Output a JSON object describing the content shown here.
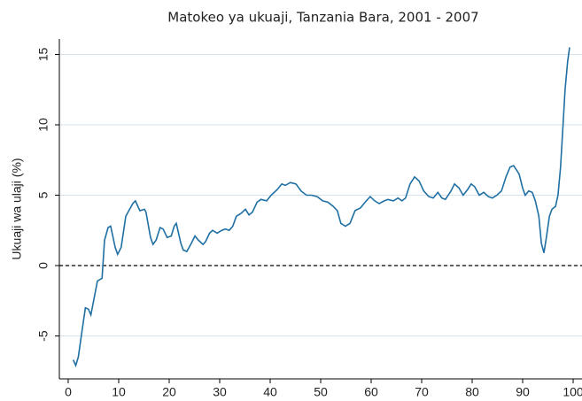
{
  "chart_data": {
    "type": "line",
    "title": "Matokeo ya ukuaji, Tanzania Bara, 2001 - 2007",
    "ylabel": "Ukuaji wa ulaji (%)",
    "color": "#1f6fa3",
    "x": [
      1,
      1.5,
      2,
      2.8,
      3.4,
      4,
      4.5,
      5.8,
      6.7,
      7.2,
      7.9,
      8.4,
      9.3,
      9.8,
      10.5,
      11.4,
      12.8,
      13.3,
      14.2,
      15.1,
      15.4,
      16.3,
      16.8,
      17.4,
      18.2,
      18.8,
      19.6,
      20.4,
      21,
      21.4,
      22.3,
      22.8,
      23.5,
      24.4,
      25.1,
      25.8,
      26.7,
      27.2,
      28,
      28.6,
      29.5,
      30.4,
      31.1,
      31.9,
      32.6,
      33.3,
      34.2,
      35.1,
      35.8,
      36.5,
      37.4,
      38.2,
      39.3,
      40.2,
      41.4,
      42.3,
      43,
      44,
      45.1,
      46.1,
      47.2,
      48.2,
      49.3,
      50.4,
      51.4,
      52.5,
      53.3,
      54,
      54.9,
      55.8,
      56.8,
      57.9,
      58.8,
      59.8,
      60.7,
      61.6,
      62.6,
      63.3,
      64.4,
      65.3,
      66.1,
      66.8,
      67.7,
      68.6,
      69.5,
      70.4,
      71.4,
      72.3,
      73.2,
      74,
      74.7,
      75.8,
      76.5,
      77.4,
      78.2,
      79.1,
      79.8,
      80.5,
      81.4,
      82.3,
      83.2,
      84,
      84.9,
      85.8,
      86.7,
      87.5,
      88.2,
      89.3,
      90,
      90.5,
      91.2,
      91.9,
      92.5,
      93.2,
      93.7,
      94.2,
      94.7,
      95.3,
      95.8,
      96.5,
      97,
      97.5,
      98,
      98.4,
      98.9,
      99.3
    ],
    "values": [
      -6.7,
      -7.1,
      -6.5,
      -4.5,
      -3.0,
      -3.1,
      -3.5,
      -1.1,
      -0.9,
      1.8,
      2.7,
      2.8,
      1.3,
      0.8,
      1.3,
      3.5,
      4.4,
      4.6,
      3.9,
      4.0,
      3.8,
      2.0,
      1.5,
      1.8,
      2.7,
      2.6,
      2.0,
      2.1,
      2.8,
      3.0,
      1.6,
      1.1,
      1.0,
      1.6,
      2.1,
      1.8,
      1.5,
      1.7,
      2.3,
      2.5,
      2.3,
      2.5,
      2.6,
      2.5,
      2.8,
      3.5,
      3.7,
      4.0,
      3.6,
      3.8,
      4.5,
      4.7,
      4.6,
      5.0,
      5.4,
      5.8,
      5.7,
      5.9,
      5.8,
      5.3,
      5.0,
      5.0,
      4.9,
      4.6,
      4.5,
      4.2,
      3.9,
      3.0,
      2.8,
      3.0,
      3.9,
      4.1,
      4.5,
      4.9,
      4.6,
      4.4,
      4.6,
      4.7,
      4.6,
      4.8,
      4.6,
      4.8,
      5.8,
      6.3,
      6.0,
      5.3,
      4.9,
      4.8,
      5.2,
      4.8,
      4.7,
      5.3,
      5.8,
      5.5,
      5.0,
      5.4,
      5.8,
      5.6,
      5.0,
      5.2,
      4.9,
      4.8,
      5.0,
      5.3,
      6.3,
      7.0,
      7.1,
      6.5,
      5.5,
      5.0,
      5.3,
      5.2,
      4.6,
      3.5,
      1.6,
      0.9,
      2.0,
      3.5,
      4.0,
      4.2,
      5.0,
      7.0,
      10,
      12.5,
      14.5,
      15.5
    ],
    "xlim": [
      -1.75,
      101.75
    ],
    "xticks": [
      0,
      10,
      20,
      30,
      40,
      50,
      60,
      70,
      80,
      90,
      100
    ],
    "ylim": [
      -8.05,
      16.1
    ],
    "yticks": [
      -5,
      0,
      5,
      10,
      15
    ],
    "grid": true,
    "hline": 0
  }
}
